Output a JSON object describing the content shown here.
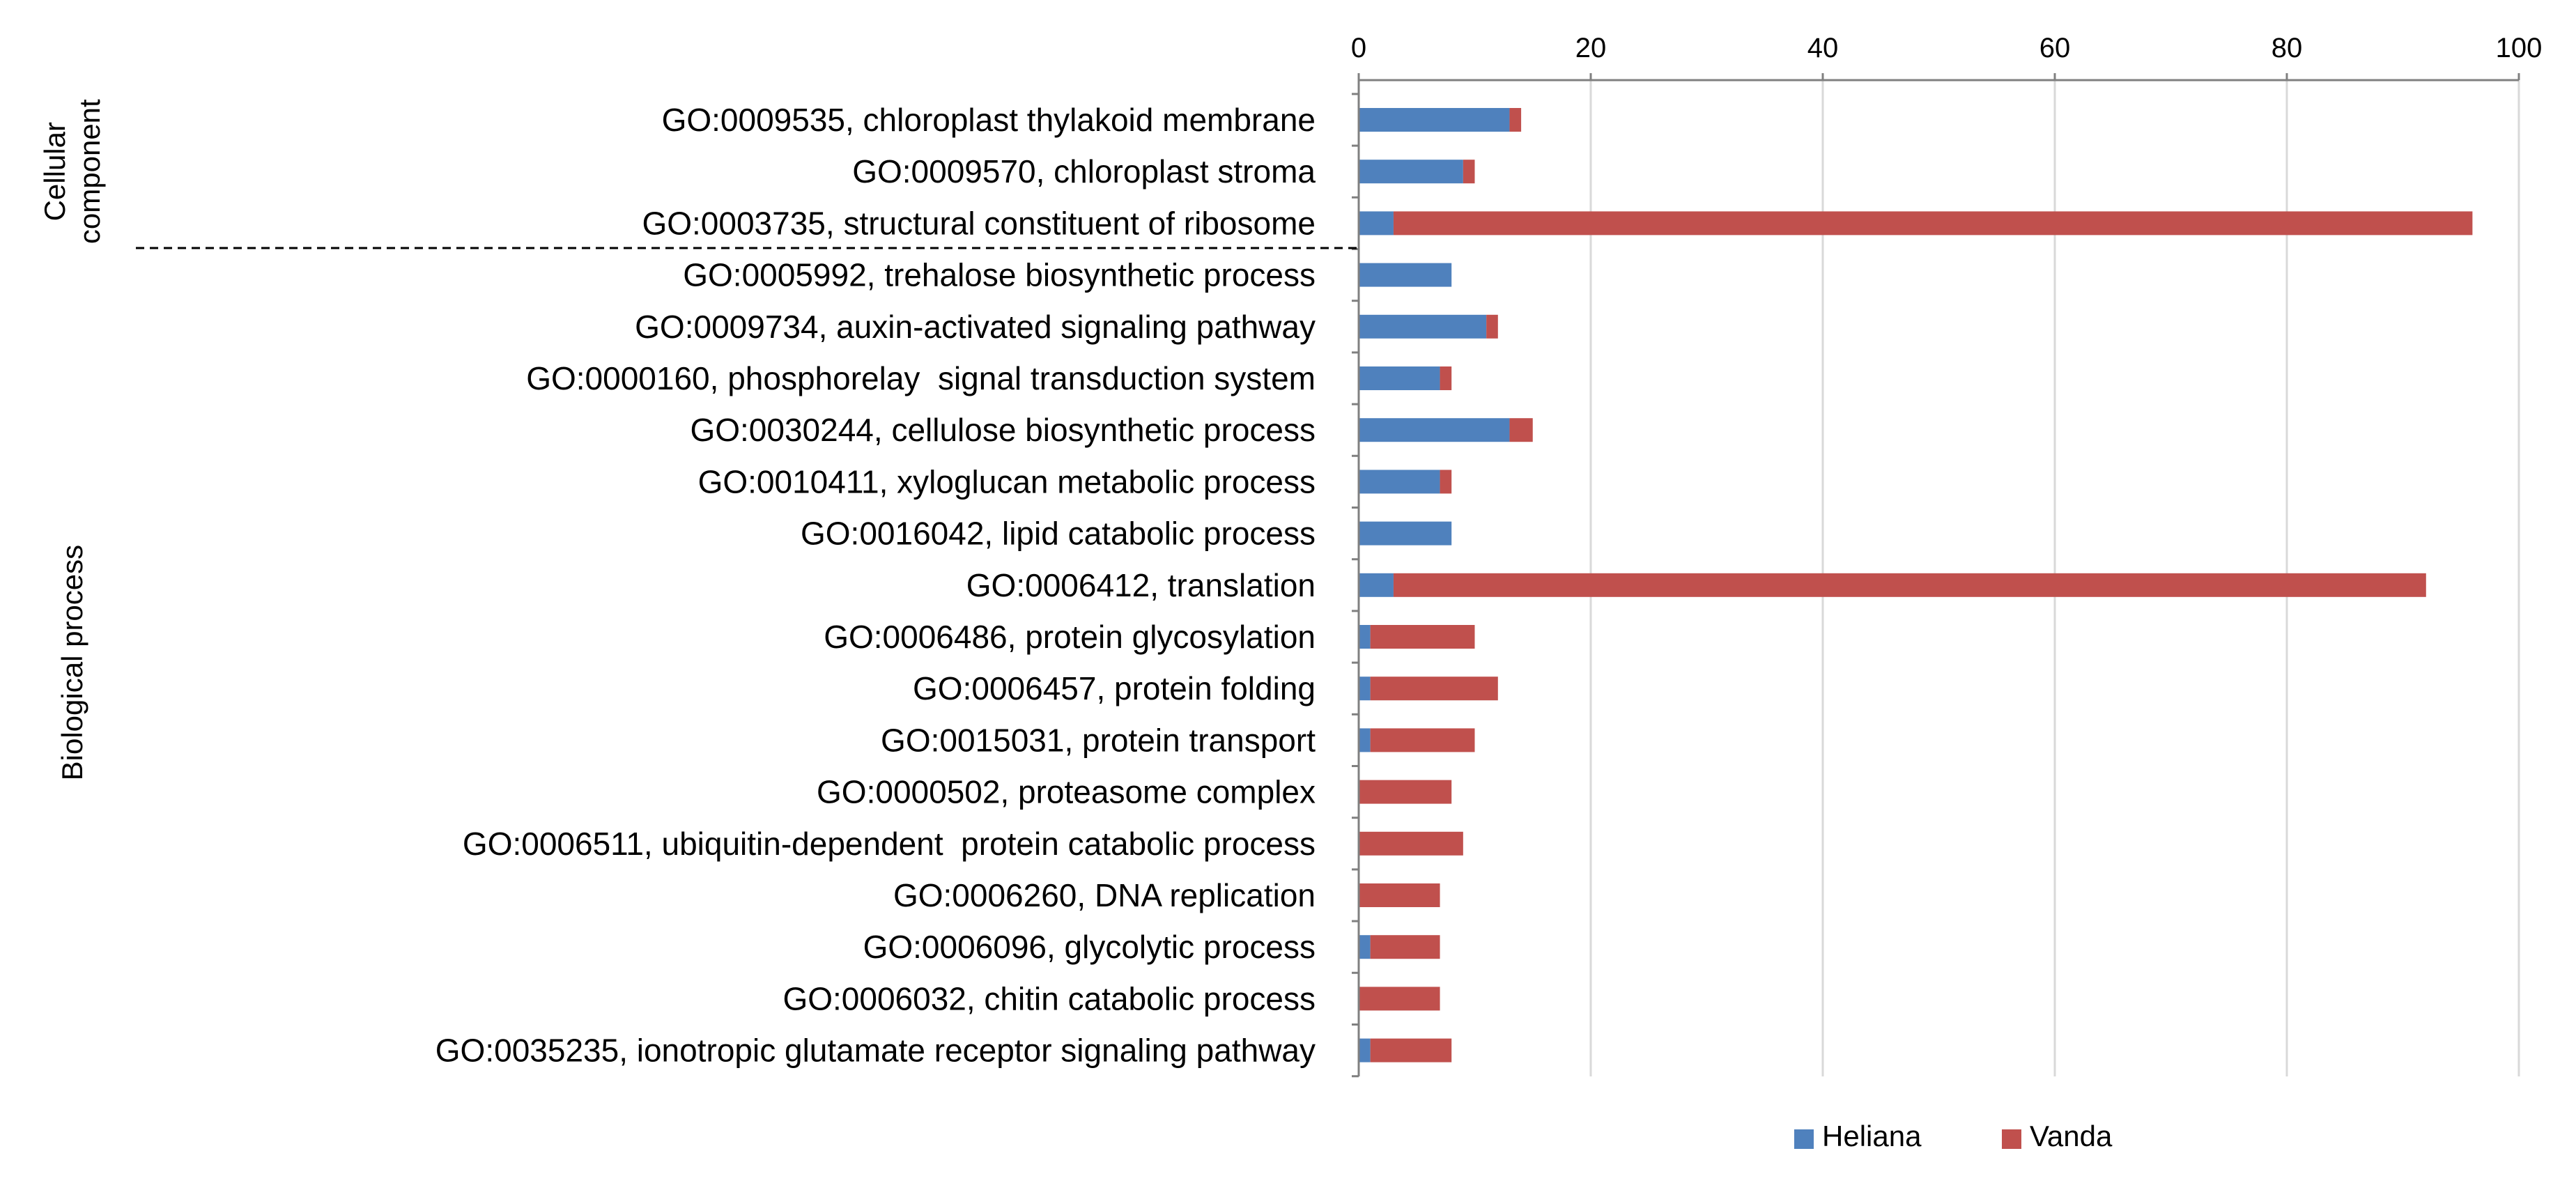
{
  "chart_data": {
    "type": "bar",
    "orientation": "horizontal",
    "stacked": true,
    "title": "",
    "xlabel": "",
    "ylabel": "",
    "xlim": [
      0,
      100
    ],
    "x_ticks": [
      0,
      20,
      40,
      60,
      80,
      100
    ],
    "x_axis_position": "top",
    "grid": true,
    "legend_position": "bottom",
    "categories": [
      "GO:0009535, chloroplast thylakoid membrane",
      "GO:0009570, chloroplast stroma",
      "GO:0003735, structural constituent of ribosome",
      "GO:0005992, trehalose biosynthetic process",
      "GO:0009734, auxin-activated signaling pathway",
      "GO:0000160, phosphorelay  signal transduction system",
      "GO:0030244, cellulose biosynthetic process",
      "GO:0010411, xyloglucan metabolic process",
      "GO:0016042, lipid catabolic process",
      "GO:0006412, translation",
      "GO:0006486, protein glycosylation",
      "GO:0006457, protein folding",
      "GO:0015031, protein transport",
      "GO:0000502, proteasome complex",
      "GO:0006511, ubiquitin-dependent  protein catabolic process",
      "GO:0006260, DNA replication",
      "GO:0006096, glycolytic process",
      "GO:0006032, chitin catabolic process",
      "GO:0035235, ionotropic glutamate receptor signaling pathway"
    ],
    "series": [
      {
        "name": "Heliana",
        "color": "#4F81BD",
        "values": [
          13,
          9,
          3,
          8,
          11,
          7,
          13,
          7,
          8,
          3,
          1,
          1,
          1,
          0,
          0,
          0,
          1,
          0,
          1
        ]
      },
      {
        "name": "Vanda",
        "color": "#C0504D",
        "values": [
          1,
          1,
          93,
          0,
          1,
          1,
          2,
          1,
          0,
          89,
          9,
          11,
          9,
          8,
          9,
          7,
          6,
          7,
          7
        ]
      }
    ],
    "groups": [
      {
        "label_lines": [
          "Cellular",
          "component"
        ],
        "start_index": 0,
        "end_index": 2
      },
      {
        "label_lines": [
          "Biological process"
        ],
        "start_index": 3,
        "end_index": 18
      }
    ]
  }
}
